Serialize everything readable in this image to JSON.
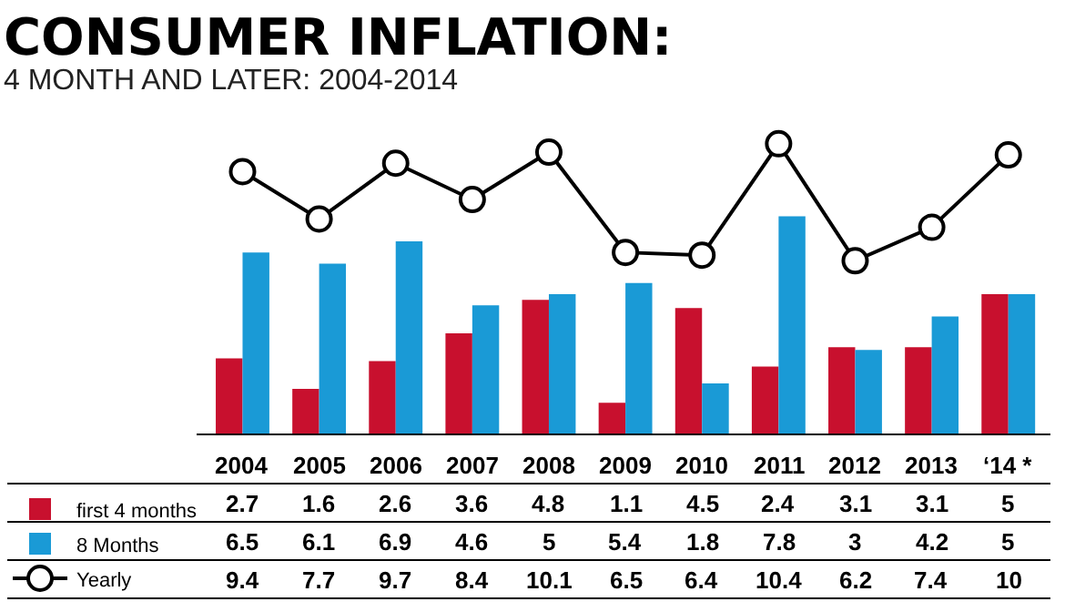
{
  "chart_data": {
    "type": "bar",
    "title": "CONSUMER INFLATION:",
    "subtitle": "4 MONTH AND LATER: 2004-2014",
    "categories": [
      "2004",
      "2005",
      "2006",
      "2007",
      "2008",
      "2009",
      "2010",
      "2011",
      "2012",
      "2013",
      "‘14 *"
    ],
    "series": [
      {
        "name": "first 4 months",
        "color": "#c8102e",
        "values": [
          2.7,
          1.6,
          2.6,
          3.6,
          4.8,
          1.1,
          4.5,
          2.4,
          3.1,
          3.1,
          5
        ]
      },
      {
        "name": "8 Months",
        "color": "#1a9ad6",
        "values": [
          6.5,
          6.1,
          6.9,
          4.6,
          5,
          5.4,
          1.8,
          7.8,
          3,
          4.2,
          5
        ]
      },
      {
        "name": "Yearly",
        "type": "line",
        "color": "#000000",
        "marker": "circle",
        "values": [
          9.4,
          7.7,
          9.7,
          8.4,
          10.1,
          6.5,
          6.4,
          10.4,
          6.2,
          7.4,
          10
        ]
      }
    ],
    "data_labels": true,
    "legend": "bottom left"
  }
}
